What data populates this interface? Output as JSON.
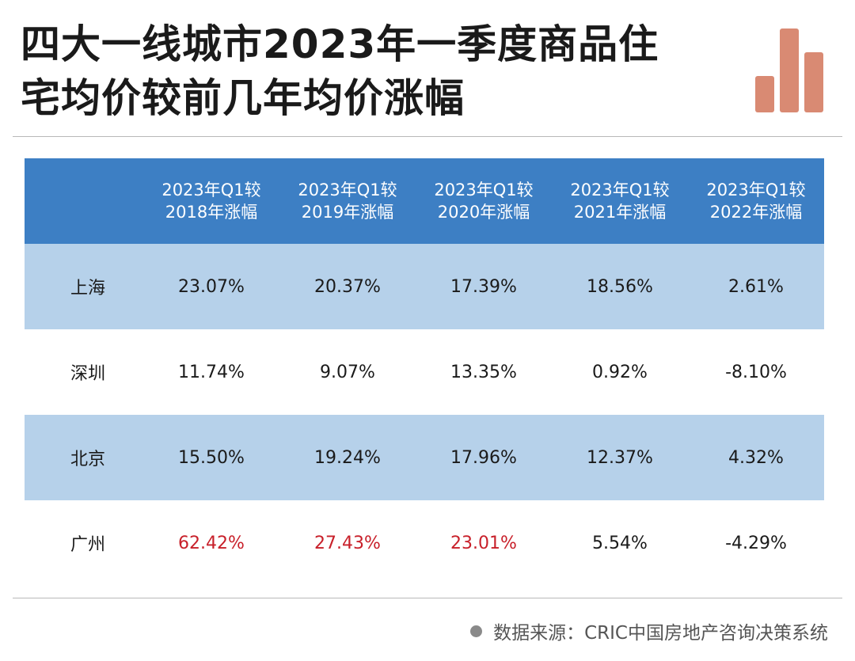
{
  "title": {
    "line1": "四大一线城市2023年一季度商品住",
    "line2": "宅均价较前几年均价涨幅"
  },
  "icons": {
    "logo": "bar-chart-logo-icon",
    "source": "bullet-dot-icon"
  },
  "colors": {
    "header_bg": "#3d7fc4",
    "row_shade": "#b6d1ea",
    "highlight": "#c8202a",
    "logo": "#d98a73"
  },
  "chart_data": {
    "type": "table",
    "columns": [
      {
        "line1": "2023年Q1较",
        "line2": "2018年涨幅"
      },
      {
        "line1": "2023年Q1较",
        "line2": "2019年涨幅"
      },
      {
        "line1": "2023年Q1较",
        "line2": "2020年涨幅"
      },
      {
        "line1": "2023年Q1较",
        "line2": "2021年涨幅"
      },
      {
        "line1": "2023年Q1较",
        "line2": "2022年涨幅"
      }
    ],
    "rows": [
      {
        "city": "上海",
        "values": [
          "23.07%",
          "20.37%",
          "17.39%",
          "18.56%",
          "2.61%"
        ],
        "highlight": [
          false,
          false,
          false,
          false,
          false
        ]
      },
      {
        "city": "深圳",
        "values": [
          "11.74%",
          "9.07%",
          "13.35%",
          "0.92%",
          "-8.10%"
        ],
        "highlight": [
          false,
          false,
          false,
          false,
          false
        ]
      },
      {
        "city": "北京",
        "values": [
          "15.50%",
          "19.24%",
          "17.96%",
          "12.37%",
          "4.32%"
        ],
        "highlight": [
          false,
          false,
          false,
          false,
          false
        ]
      },
      {
        "city": "广州",
        "values": [
          "62.42%",
          "27.43%",
          "23.01%",
          "5.54%",
          "-4.29%"
        ],
        "highlight": [
          true,
          true,
          true,
          false,
          false
        ]
      }
    ]
  },
  "source": "数据来源：CRIC中国房地产咨询决策系统"
}
